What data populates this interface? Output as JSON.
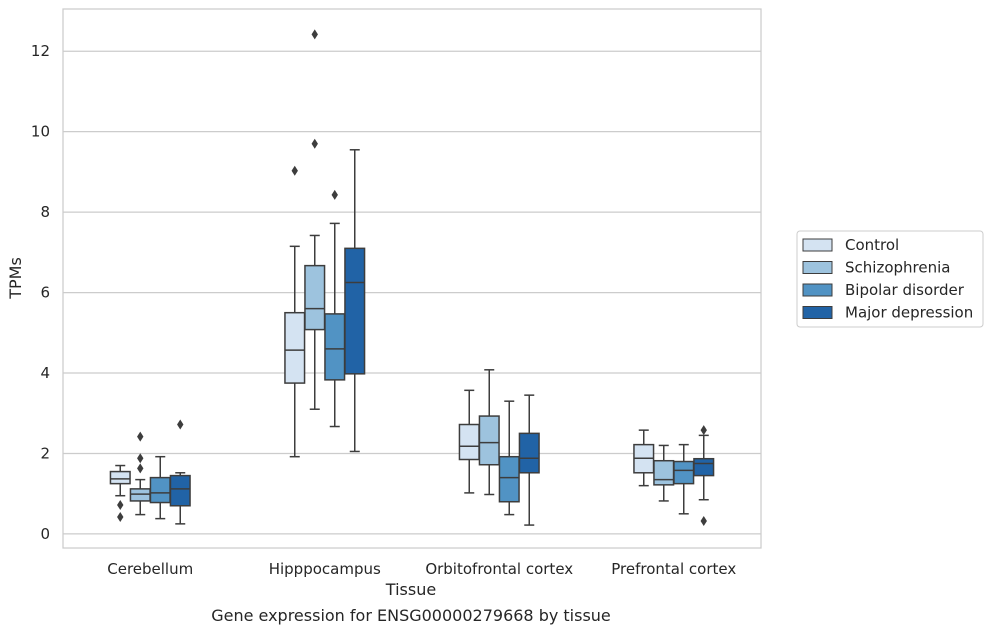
{
  "caption": "Gene expression for ENSG00000279668 by tissue",
  "chart_data": {
    "type": "box",
    "title": "",
    "xlabel": "Tissue",
    "ylabel": "TPMs",
    "ylim": [
      -0.35,
      13.05
    ],
    "yticks": [
      0,
      2,
      4,
      6,
      8,
      10,
      12
    ],
    "grid": "horizontal",
    "legend_position": "right",
    "categories": [
      "Cerebellum",
      "Hipppocampus",
      "Orbitofrontal cortex",
      "Prefrontal cortex"
    ],
    "series": [
      {
        "name": "Control",
        "color": "#d4e3f2",
        "boxes": [
          {
            "whislo": 0.95,
            "q1": 1.25,
            "med": 1.37,
            "q3": 1.55,
            "whishi": 1.7,
            "fliers": [
              0.72,
              0.42
            ]
          },
          {
            "whislo": 1.92,
            "q1": 3.75,
            "med": 4.57,
            "q3": 5.5,
            "whishi": 7.15,
            "fliers": [
              9.03
            ]
          },
          {
            "whislo": 1.02,
            "q1": 1.85,
            "med": 2.18,
            "q3": 2.72,
            "whishi": 3.57,
            "fliers": []
          },
          {
            "whislo": 1.2,
            "q1": 1.52,
            "med": 1.88,
            "q3": 2.22,
            "whishi": 2.58,
            "fliers": []
          }
        ]
      },
      {
        "name": "Schizophrenia",
        "color": "#9dc3de",
        "boxes": [
          {
            "whislo": 0.48,
            "q1": 0.82,
            "med": 0.99,
            "q3": 1.12,
            "whishi": 1.35,
            "fliers": [
              2.42,
              1.88,
              1.63
            ]
          },
          {
            "whislo": 3.1,
            "q1": 5.08,
            "med": 5.6,
            "q3": 6.67,
            "whishi": 7.42,
            "fliers": [
              12.42,
              9.7
            ]
          },
          {
            "whislo": 0.98,
            "q1": 1.72,
            "med": 2.27,
            "q3": 2.93,
            "whishi": 4.08,
            "fliers": []
          },
          {
            "whislo": 0.82,
            "q1": 1.22,
            "med": 1.35,
            "q3": 1.82,
            "whishi": 2.2,
            "fliers": []
          }
        ]
      },
      {
        "name": "Bipolar disorder",
        "color": "#5193c4",
        "boxes": [
          {
            "whislo": 0.38,
            "q1": 0.78,
            "med": 1.02,
            "q3": 1.4,
            "whishi": 1.92,
            "fliers": []
          },
          {
            "whislo": 2.67,
            "q1": 3.83,
            "med": 4.6,
            "q3": 5.47,
            "whishi": 7.72,
            "fliers": [
              8.43
            ]
          },
          {
            "whislo": 0.48,
            "q1": 0.8,
            "med": 1.4,
            "q3": 1.92,
            "whishi": 3.3,
            "fliers": []
          },
          {
            "whislo": 0.5,
            "q1": 1.25,
            "med": 1.58,
            "q3": 1.8,
            "whishi": 2.22,
            "fliers": []
          }
        ]
      },
      {
        "name": "Major depression",
        "color": "#2163a6",
        "boxes": [
          {
            "whislo": 0.25,
            "q1": 0.7,
            "med": 1.12,
            "q3": 1.45,
            "whishi": 1.52,
            "fliers": [
              2.72
            ]
          },
          {
            "whislo": 2.05,
            "q1": 3.98,
            "med": 6.25,
            "q3": 7.1,
            "whishi": 9.55,
            "fliers": []
          },
          {
            "whislo": 0.22,
            "q1": 1.52,
            "med": 1.88,
            "q3": 2.5,
            "whishi": 3.45,
            "fliers": []
          },
          {
            "whislo": 0.85,
            "q1": 1.45,
            "med": 1.75,
            "q3": 1.87,
            "whishi": 2.45,
            "fliers": [
              2.58,
              0.32
            ]
          }
        ]
      }
    ]
  }
}
